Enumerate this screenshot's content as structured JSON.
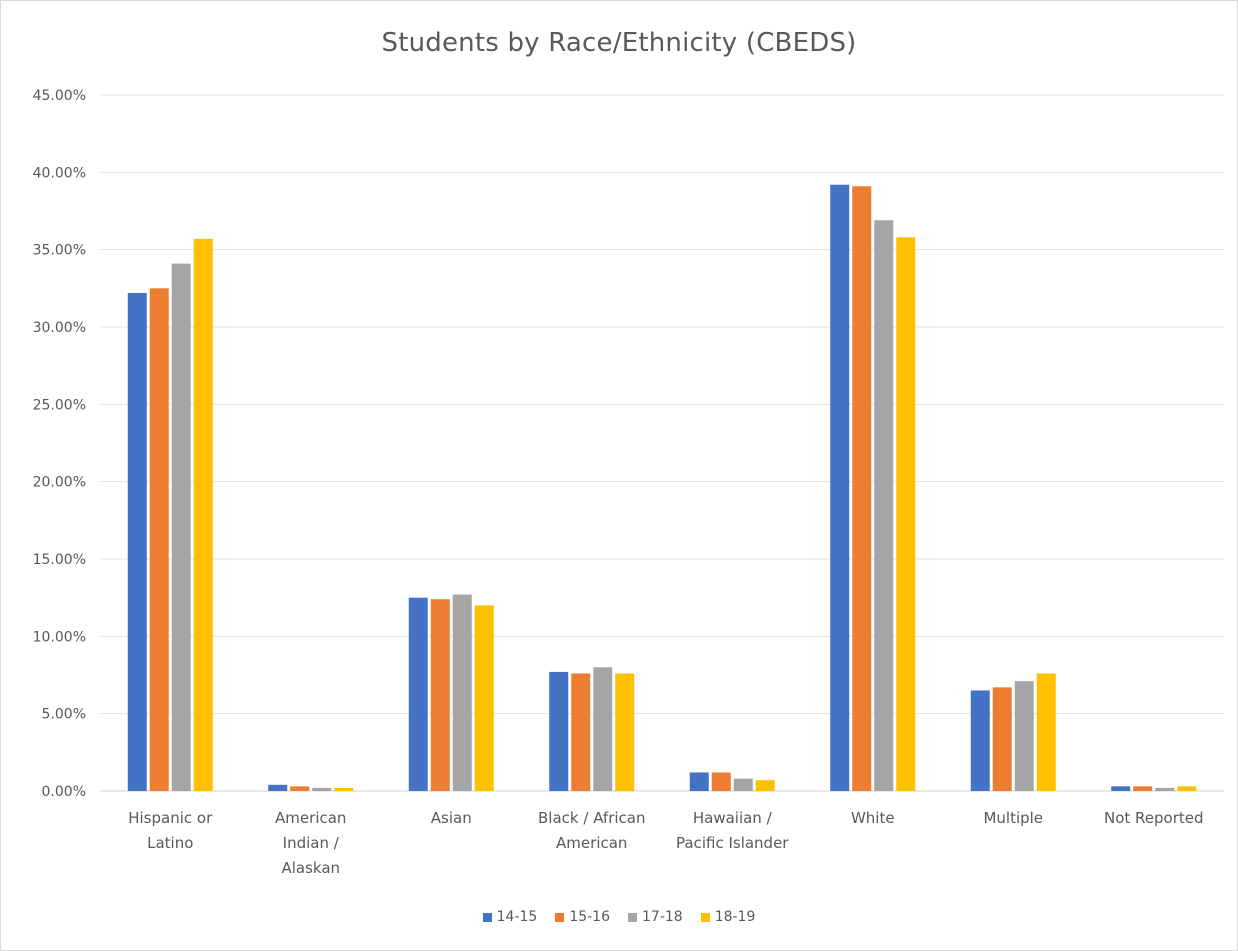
{
  "chart_data": {
    "type": "bar",
    "title": "Students by Race/Ethnicity (CBEDS)",
    "xlabel": "",
    "ylabel": "",
    "ylim": [
      0,
      45
    ],
    "y_ticks": [
      "0.00%",
      "5.00%",
      "10.00%",
      "15.00%",
      "20.00%",
      "25.00%",
      "30.00%",
      "35.00%",
      "40.00%",
      "45.00%"
    ],
    "grid": true,
    "legend_position": "bottom",
    "categories": [
      [
        "Hispanic or",
        "Latino"
      ],
      [
        "American",
        "Indian /",
        "Alaskan"
      ],
      [
        "Asian"
      ],
      [
        "Black / African",
        "American"
      ],
      [
        "Hawaiian /",
        "Pacific Islander"
      ],
      [
        "White"
      ],
      [
        "Multiple"
      ],
      [
        "Not Reported"
      ]
    ],
    "series": [
      {
        "name": "14-15",
        "color": "#4472c4",
        "values": [
          32.2,
          0.4,
          12.5,
          7.7,
          1.2,
          39.2,
          6.5,
          0.3
        ]
      },
      {
        "name": "15-16",
        "color": "#ed7d31",
        "values": [
          32.5,
          0.3,
          12.4,
          7.6,
          1.2,
          39.1,
          6.7,
          0.3
        ]
      },
      {
        "name": "17-18",
        "color": "#a5a5a5",
        "values": [
          34.1,
          0.2,
          12.7,
          8.0,
          0.8,
          36.9,
          7.1,
          0.2
        ]
      },
      {
        "name": "18-19",
        "color": "#ffc000",
        "values": [
          35.7,
          0.2,
          12.0,
          7.6,
          0.7,
          35.8,
          7.6,
          0.3
        ]
      }
    ]
  }
}
